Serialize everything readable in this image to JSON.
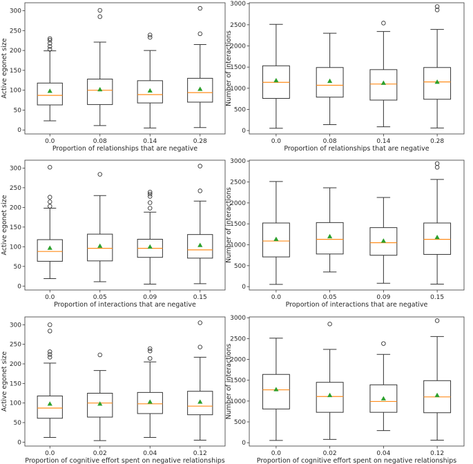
{
  "colors": {
    "box": "#333333",
    "median": "#ff8c1a",
    "mean": "#2ca02c",
    "frame": "#333333"
  },
  "chart_data": [
    {
      "type": "boxplot",
      "id": "p00",
      "xlabel": "Proportion of relationships that are negative",
      "ylabel": "Active egonet size",
      "ylim": [
        -10,
        320
      ],
      "yticks": [
        0,
        50,
        100,
        150,
        200,
        250,
        300
      ],
      "categories": [
        "0.0",
        "0.08",
        "0.14",
        "0.28"
      ],
      "boxes": [
        {
          "whislo": 23,
          "q1": 63,
          "med": 87,
          "q3": 118,
          "whishi": 199,
          "mean": 98,
          "fliers": [
            203,
            210,
            218,
            226,
            230
          ]
        },
        {
          "whislo": 11,
          "q1": 64,
          "med": 100,
          "q3": 128,
          "whishi": 221,
          "mean": 102,
          "fliers": [
            285,
            301
          ]
        },
        {
          "whislo": 5,
          "q1": 68,
          "med": 89,
          "q3": 124,
          "whishi": 200,
          "mean": 99,
          "fliers": [
            233,
            239
          ]
        },
        {
          "whislo": 6,
          "q1": 70,
          "med": 94,
          "q3": 130,
          "whishi": 215,
          "mean": 103,
          "fliers": [
            242,
            306
          ]
        }
      ]
    },
    {
      "type": "boxplot",
      "id": "p01",
      "xlabel": "Proportion of relationships that are negative",
      "ylabel": "Number of interactions",
      "ylim": [
        -80,
        3020
      ],
      "yticks": [
        0,
        500,
        1000,
        1500,
        2000,
        2500,
        3000
      ],
      "categories": [
        "0.0",
        "0.08",
        "0.14",
        "0.28"
      ],
      "boxes": [
        {
          "whislo": 55,
          "q1": 760,
          "med": 1140,
          "q3": 1530,
          "whishi": 2510,
          "mean": 1185,
          "fliers": []
        },
        {
          "whislo": 140,
          "q1": 790,
          "med": 1070,
          "q3": 1490,
          "whishi": 2300,
          "mean": 1170,
          "fliers": []
        },
        {
          "whislo": 90,
          "q1": 720,
          "med": 1100,
          "q3": 1440,
          "whishi": 2340,
          "mean": 1125,
          "fliers": [
            2540
          ]
        },
        {
          "whislo": 60,
          "q1": 740,
          "med": 1150,
          "q3": 1490,
          "whishi": 2390,
          "mean": 1150,
          "fliers": [
            2850,
            2930
          ]
        }
      ]
    },
    {
      "type": "boxplot",
      "id": "p10",
      "xlabel": "Proportion of interactions that are negative",
      "ylabel": "Active egonet size",
      "ylim": [
        -10,
        320
      ],
      "yticks": [
        0,
        50,
        100,
        150,
        200,
        250,
        300
      ],
      "categories": [
        "0.0",
        "0.05",
        "0.09",
        "0.15"
      ],
      "boxes": [
        {
          "whislo": 19,
          "q1": 63,
          "med": 88,
          "q3": 118,
          "whishi": 198,
          "mean": 97,
          "fliers": [
            203,
            214,
            226,
            302
          ]
        },
        {
          "whislo": 11,
          "q1": 64,
          "med": 96,
          "q3": 132,
          "whishi": 230,
          "mean": 102,
          "fliers": [
            284
          ]
        },
        {
          "whislo": 5,
          "q1": 73,
          "med": 96,
          "q3": 119,
          "whishi": 188,
          "mean": 100,
          "fliers": [
            198,
            212,
            228,
            234,
            239
          ]
        },
        {
          "whislo": 6,
          "q1": 71,
          "med": 92,
          "q3": 131,
          "whishi": 216,
          "mean": 104,
          "fliers": [
            242,
            305
          ]
        }
      ]
    },
    {
      "type": "boxplot",
      "id": "p11",
      "xlabel": "Proportion of interactions that are negative",
      "ylabel": "Number of interactions",
      "ylim": [
        -80,
        3020
      ],
      "yticks": [
        0,
        500,
        1000,
        1500,
        2000,
        2500,
        3000
      ],
      "categories": [
        "0.0",
        "0.05",
        "0.09",
        "0.15"
      ],
      "boxes": [
        {
          "whislo": 55,
          "q1": 710,
          "med": 1090,
          "q3": 1520,
          "whishi": 2510,
          "mean": 1135,
          "fliers": []
        },
        {
          "whislo": 350,
          "q1": 780,
          "med": 1130,
          "q3": 1530,
          "whishi": 2360,
          "mean": 1200,
          "fliers": []
        },
        {
          "whislo": 80,
          "q1": 750,
          "med": 1050,
          "q3": 1410,
          "whishi": 2130,
          "mean": 1095,
          "fliers": []
        },
        {
          "whislo": 60,
          "q1": 770,
          "med": 1130,
          "q3": 1520,
          "whishi": 2560,
          "mean": 1180,
          "fliers": [
            2850,
            2940
          ]
        }
      ]
    },
    {
      "type": "boxplot",
      "id": "p20",
      "xlabel": "Proportion of cognitive effort spent on negative relationships",
      "ylabel": "Active egonet size",
      "ylim": [
        -10,
        320
      ],
      "yticks": [
        0,
        50,
        100,
        150,
        200,
        250,
        300
      ],
      "categories": [
        "0.0",
        "0.02",
        "0.04",
        "0.12"
      ],
      "boxes": [
        {
          "whislo": 12,
          "q1": 61,
          "med": 87,
          "q3": 118,
          "whishi": 202,
          "mean": 98,
          "fliers": [
            217,
            224,
            231,
            284,
            300
          ]
        },
        {
          "whislo": 4,
          "q1": 64,
          "med": 100,
          "q3": 125,
          "whishi": 183,
          "mean": 98,
          "fliers": [
            223
          ]
        },
        {
          "whislo": 12,
          "q1": 73,
          "med": 98,
          "q3": 127,
          "whishi": 205,
          "mean": 103,
          "fliers": [
            214,
            233,
            239
          ]
        },
        {
          "whislo": 5,
          "q1": 70,
          "med": 92,
          "q3": 130,
          "whishi": 217,
          "mean": 103,
          "fliers": [
            243,
            305
          ]
        }
      ]
    },
    {
      "type": "boxplot",
      "id": "p21",
      "xlabel": "Proportion of cognitive effort spent on negative relationships",
      "ylabel": "Number of interactions",
      "ylim": [
        -80,
        3020
      ],
      "yticks": [
        0,
        500,
        1000,
        1500,
        2000,
        2500,
        3000
      ],
      "categories": [
        "0.0",
        "0.02",
        "0.04",
        "0.12"
      ],
      "boxes": [
        {
          "whislo": 55,
          "q1": 810,
          "med": 1270,
          "q3": 1640,
          "whishi": 2510,
          "mean": 1280,
          "fliers": []
        },
        {
          "whislo": 80,
          "q1": 730,
          "med": 1110,
          "q3": 1450,
          "whishi": 2240,
          "mean": 1140,
          "fliers": [
            2850
          ]
        },
        {
          "whislo": 290,
          "q1": 730,
          "med": 990,
          "q3": 1390,
          "whishi": 2120,
          "mean": 1060,
          "fliers": [
            2380
          ]
        },
        {
          "whislo": 60,
          "q1": 720,
          "med": 1100,
          "q3": 1490,
          "whishi": 2550,
          "mean": 1140,
          "fliers": [
            2930
          ]
        }
      ]
    }
  ]
}
